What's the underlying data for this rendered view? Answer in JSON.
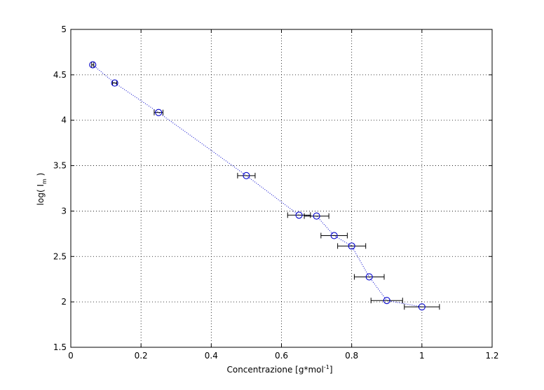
{
  "chart_data": {
    "type": "scatter",
    "title": "",
    "xlabel": "Concentrazione [g*mol",
    "xlabel_sup": "-1",
    "xlabel_end": "]",
    "ylabel": "log( I",
    "ylabel_sub": "m",
    "ylabel_end": " )",
    "xlim": [
      0,
      1.2
    ],
    "ylim": [
      1.5,
      5
    ],
    "xticks": [
      0,
      0.2,
      0.4,
      0.6,
      0.8,
      1,
      1.2
    ],
    "xtick_labels": [
      "0",
      "0.2",
      "0.4",
      "0.6",
      "0.8",
      "1",
      "1.2"
    ],
    "yticks": [
      1.5,
      2,
      2.5,
      3,
      3.5,
      4,
      4.5,
      5
    ],
    "ytick_labels": [
      "1.5",
      "2",
      "2.5",
      "3",
      "3.5",
      "4",
      "4.5",
      "5"
    ],
    "grid": true,
    "series": [
      {
        "x": [
          0.0625,
          0.125,
          0.25,
          0.5,
          0.65,
          0.7,
          0.75,
          0.8,
          0.85,
          0.9,
          1.0
        ],
        "y": [
          4.61,
          4.41,
          4.085,
          3.39,
          2.955,
          2.945,
          2.73,
          2.615,
          2.275,
          2.015,
          1.945
        ],
        "x_error": [
          0.003,
          0.006,
          0.0125,
          0.025,
          0.0325,
          0.035,
          0.0375,
          0.04,
          0.0425,
          0.045,
          0.05
        ],
        "marker": "circle",
        "line_style": "dotted",
        "color": "#0000cc",
        "error_bar_color": "#000000"
      }
    ]
  }
}
